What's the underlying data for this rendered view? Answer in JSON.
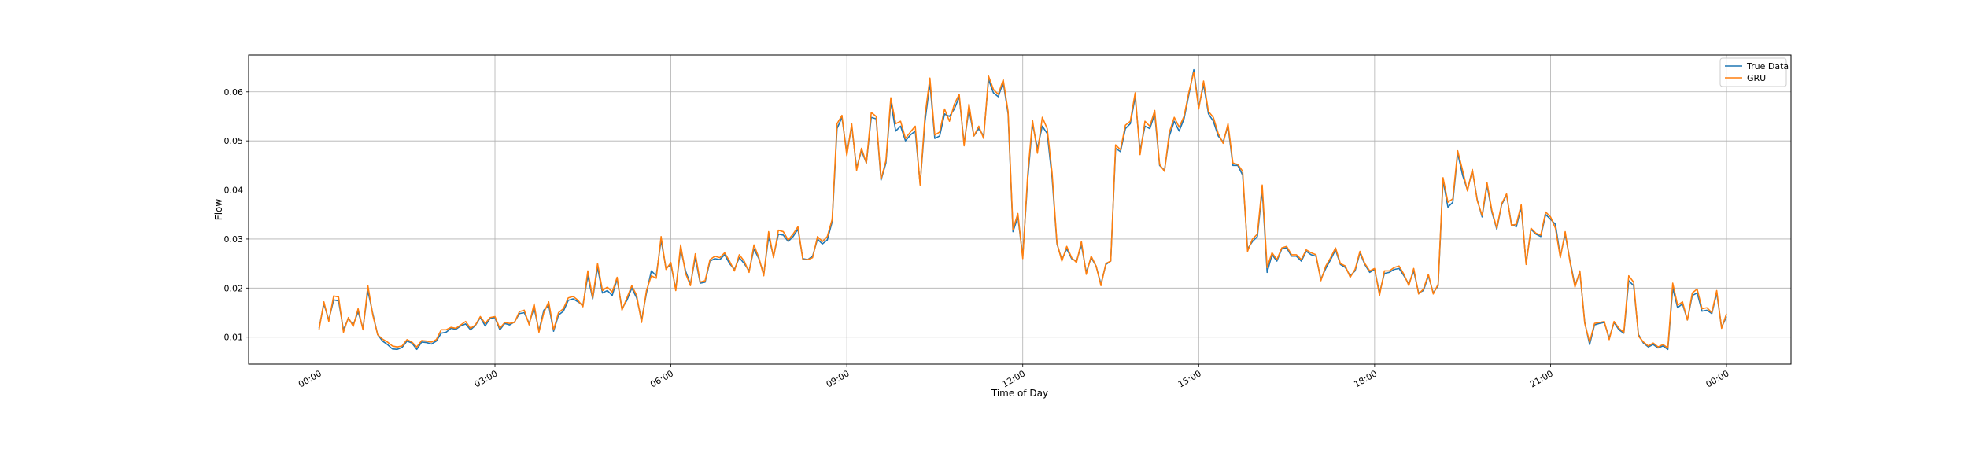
{
  "chart_data": {
    "type": "line",
    "xlabel": "Time of Day",
    "ylabel": "Flow",
    "x_ticks": [
      "00:00",
      "03:00",
      "06:00",
      "09:00",
      "12:00",
      "15:00",
      "18:00",
      "21:00",
      "00:00"
    ],
    "y_ticks": [
      "0.01",
      "0.02",
      "0.03",
      "0.04",
      "0.05",
      "0.06"
    ],
    "xlim_hours": [
      -1.2,
      25.1
    ],
    "ylim": [
      0.0045,
      0.0675
    ],
    "grid": true,
    "legend_position": "top-right",
    "interval_minutes": 5,
    "series": [
      {
        "name": "True Data",
        "color": "#1f77b4",
        "values": [
          0.0118,
          0.0168,
          0.0135,
          0.0176,
          0.0174,
          0.0115,
          0.0138,
          0.0125,
          0.0152,
          0.0118,
          0.0195,
          0.0148,
          0.0105,
          0.0092,
          0.0085,
          0.0076,
          0.0075,
          0.0079,
          0.0092,
          0.0088,
          0.0075,
          0.009,
          0.0089,
          0.0086,
          0.0092,
          0.0108,
          0.011,
          0.0118,
          0.0116,
          0.0123,
          0.0127,
          0.0115,
          0.0124,
          0.014,
          0.0123,
          0.0138,
          0.014,
          0.0115,
          0.0128,
          0.0125,
          0.0131,
          0.0148,
          0.015,
          0.0128,
          0.016,
          0.0113,
          0.0155,
          0.0165,
          0.0112,
          0.0145,
          0.0153,
          0.0175,
          0.0178,
          0.0172,
          0.0165,
          0.0225,
          0.0178,
          0.0242,
          0.019,
          0.0195,
          0.0185,
          0.0218,
          0.0158,
          0.0175,
          0.02,
          0.018,
          0.0135,
          0.019,
          0.0235,
          0.0225,
          0.0298,
          0.024,
          0.0248,
          0.0198,
          0.028,
          0.0235,
          0.0208,
          0.0262,
          0.021,
          0.0212,
          0.0255,
          0.026,
          0.0258,
          0.0268,
          0.025,
          0.0238,
          0.0262,
          0.025,
          0.0235,
          0.028,
          0.026,
          0.0228,
          0.0305,
          0.0265,
          0.031,
          0.0308,
          0.0295,
          0.0305,
          0.032,
          0.026,
          0.0258,
          0.0265,
          0.03,
          0.029,
          0.0298,
          0.0335,
          0.0525,
          0.0548,
          0.0475,
          0.053,
          0.0445,
          0.048,
          0.0455,
          0.0548,
          0.0545,
          0.042,
          0.0455,
          0.058,
          0.052,
          0.053,
          0.05,
          0.0512,
          0.052,
          0.0412,
          0.054,
          0.0618,
          0.0505,
          0.051,
          0.0555,
          0.055,
          0.0565,
          0.059,
          0.0495,
          0.0565,
          0.051,
          0.0525,
          0.051,
          0.0625,
          0.0598,
          0.059,
          0.062,
          0.0555,
          0.0315,
          0.0345,
          0.0265,
          0.042,
          0.0535,
          0.0485,
          0.053,
          0.0515,
          0.0425,
          0.029,
          0.0258,
          0.028,
          0.026,
          0.0255,
          0.0288,
          0.0232,
          0.0262,
          0.0245,
          0.0208,
          0.0248,
          0.0255,
          0.0485,
          0.0478,
          0.0525,
          0.0535,
          0.059,
          0.048,
          0.053,
          0.0525,
          0.0555,
          0.045,
          0.044,
          0.051,
          0.054,
          0.052,
          0.0545,
          0.0595,
          0.0645,
          0.0568,
          0.0615,
          0.0555,
          0.054,
          0.051,
          0.0498,
          0.053,
          0.045,
          0.045,
          0.043,
          0.028,
          0.0295,
          0.0305,
          0.04,
          0.0232,
          0.0268,
          0.0255,
          0.028,
          0.0282,
          0.0265,
          0.0265,
          0.0255,
          0.0275,
          0.0268,
          0.0265,
          0.0218,
          0.024,
          0.0258,
          0.0278,
          0.0248,
          0.0242,
          0.0225,
          0.0235,
          0.0272,
          0.0248,
          0.0232,
          0.0238,
          0.019,
          0.023,
          0.0232,
          0.0238,
          0.024,
          0.0225,
          0.0208,
          0.0235,
          0.019,
          0.0195,
          0.0225,
          0.019,
          0.0205,
          0.042,
          0.0365,
          0.0375,
          0.0475,
          0.043,
          0.04,
          0.044,
          0.038,
          0.0345,
          0.041,
          0.0355,
          0.032,
          0.037,
          0.039,
          0.033,
          0.0325,
          0.0365,
          0.025,
          0.032,
          0.031,
          0.0305,
          0.035,
          0.034,
          0.033,
          0.0265,
          0.031,
          0.0255,
          0.0205,
          0.0232,
          0.013,
          0.0085,
          0.0125,
          0.0128,
          0.013,
          0.0098,
          0.013,
          0.0115,
          0.0108,
          0.0215,
          0.0205,
          0.0105,
          0.0088,
          0.008,
          0.0085,
          0.0078,
          0.0082,
          0.0075,
          0.02,
          0.016,
          0.0168,
          0.0135,
          0.0185,
          0.019,
          0.0153,
          0.0155,
          0.0148,
          0.019,
          0.012,
          0.0142
        ]
      },
      {
        "name": "GRU",
        "color": "#ff7f0e",
        "values": [
          0.0115,
          0.0172,
          0.0132,
          0.0184,
          0.0182,
          0.011,
          0.014,
          0.0122,
          0.0158,
          0.0115,
          0.0205,
          0.0145,
          0.0105,
          0.0096,
          0.009,
          0.0082,
          0.008,
          0.0082,
          0.0095,
          0.009,
          0.008,
          0.0093,
          0.0092,
          0.009,
          0.0095,
          0.0115,
          0.0115,
          0.012,
          0.0118,
          0.0125,
          0.0132,
          0.0118,
          0.0125,
          0.0142,
          0.0128,
          0.014,
          0.0142,
          0.0118,
          0.013,
          0.0128,
          0.013,
          0.0152,
          0.0155,
          0.0125,
          0.0168,
          0.011,
          0.015,
          0.0172,
          0.0115,
          0.015,
          0.0158,
          0.018,
          0.0183,
          0.0175,
          0.0162,
          0.0235,
          0.018,
          0.025,
          0.0195,
          0.0202,
          0.0192,
          0.0222,
          0.0155,
          0.018,
          0.0205,
          0.0185,
          0.013,
          0.0195,
          0.0225,
          0.022,
          0.0305,
          0.0238,
          0.0252,
          0.0195,
          0.0288,
          0.023,
          0.0205,
          0.027,
          0.0212,
          0.0215,
          0.0258,
          0.0265,
          0.0262,
          0.0272,
          0.0255,
          0.0235,
          0.0268,
          0.0255,
          0.0232,
          0.0288,
          0.0262,
          0.0225,
          0.0315,
          0.0262,
          0.0318,
          0.0315,
          0.0298,
          0.031,
          0.0325,
          0.0258,
          0.0258,
          0.0262,
          0.0305,
          0.0295,
          0.0305,
          0.034,
          0.0535,
          0.0552,
          0.047,
          0.0535,
          0.044,
          0.0485,
          0.0455,
          0.0558,
          0.055,
          0.0422,
          0.046,
          0.0588,
          0.0535,
          0.054,
          0.0505,
          0.0518,
          0.053,
          0.041,
          0.0552,
          0.0628,
          0.0512,
          0.0518,
          0.0565,
          0.054,
          0.0575,
          0.0595,
          0.049,
          0.0575,
          0.051,
          0.053,
          0.0505,
          0.0632,
          0.0605,
          0.0595,
          0.0625,
          0.056,
          0.032,
          0.0352,
          0.026,
          0.043,
          0.0542,
          0.0475,
          0.0548,
          0.0525,
          0.0435,
          0.0292,
          0.0255,
          0.0285,
          0.0262,
          0.0252,
          0.0295,
          0.0228,
          0.0265,
          0.0245,
          0.0205,
          0.025,
          0.0255,
          0.0492,
          0.0482,
          0.0532,
          0.054,
          0.0598,
          0.0472,
          0.054,
          0.053,
          0.0562,
          0.0452,
          0.0438,
          0.0518,
          0.0548,
          0.0528,
          0.055,
          0.06,
          0.064,
          0.0565,
          0.0622,
          0.056,
          0.0548,
          0.0515,
          0.0495,
          0.0535,
          0.0455,
          0.0452,
          0.0438,
          0.0275,
          0.03,
          0.031,
          0.041,
          0.0242,
          0.0272,
          0.0258,
          0.0282,
          0.0285,
          0.0268,
          0.0268,
          0.0258,
          0.0278,
          0.0272,
          0.0268,
          0.0215,
          0.0245,
          0.0262,
          0.0282,
          0.025,
          0.0245,
          0.0222,
          0.0238,
          0.0275,
          0.025,
          0.0235,
          0.024,
          0.0185,
          0.0235,
          0.0235,
          0.0242,
          0.0245,
          0.0228,
          0.0205,
          0.024,
          0.0188,
          0.0198,
          0.0228,
          0.0188,
          0.0208,
          0.0425,
          0.0375,
          0.0382,
          0.048,
          0.044,
          0.0398,
          0.0442,
          0.0378,
          0.0348,
          0.0415,
          0.0358,
          0.0322,
          0.0372,
          0.0392,
          0.0328,
          0.033,
          0.037,
          0.0248,
          0.0322,
          0.0312,
          0.0308,
          0.0355,
          0.0345,
          0.0322,
          0.0262,
          0.0315,
          0.0252,
          0.0202,
          0.0235,
          0.0128,
          0.009,
          0.0128,
          0.013,
          0.0132,
          0.0095,
          0.0132,
          0.0118,
          0.011,
          0.0225,
          0.0212,
          0.0102,
          0.009,
          0.0082,
          0.0088,
          0.008,
          0.0085,
          0.0078,
          0.021,
          0.0165,
          0.0172,
          0.0135,
          0.019,
          0.0198,
          0.0158,
          0.016,
          0.015,
          0.0195,
          0.0118,
          0.0148
        ]
      }
    ]
  }
}
